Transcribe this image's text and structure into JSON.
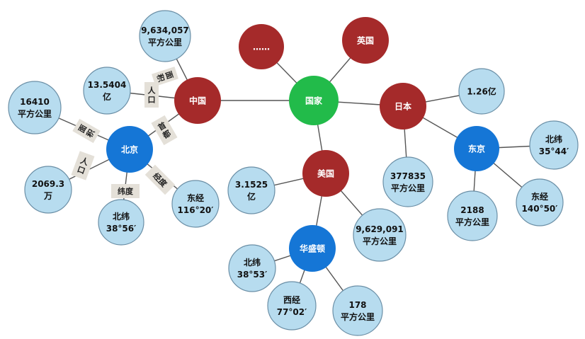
{
  "center": "国家",
  "countries": {
    "china": "中国",
    "japan": "日本",
    "usa": "美国",
    "uk": "英国",
    "more": "……"
  },
  "capitals": {
    "beijing": "北京",
    "tokyo": "东京",
    "washington": "华盛顿"
  },
  "china_facts": {
    "area": [
      "9,634,057",
      "平方公里"
    ],
    "population": [
      "13.5404",
      "亿"
    ]
  },
  "beijing_facts": {
    "area": [
      "16410",
      "平方公里"
    ],
    "population": [
      "2069.3",
      "万"
    ],
    "latitude": [
      "北纬",
      "38°56′"
    ],
    "longitude": [
      "东经",
      "116°20′"
    ]
  },
  "japan_facts": {
    "population": [
      "1.26亿"
    ],
    "area": [
      "377835",
      "平方公里"
    ]
  },
  "tokyo_facts": {
    "latitude": [
      "北纬",
      "35°44′"
    ],
    "longitude": [
      "东经",
      "140°50′"
    ],
    "area": [
      "2188",
      "平方公里"
    ]
  },
  "usa_facts": {
    "population": [
      "3.1525",
      "亿"
    ],
    "area": [
      "9,629,091",
      "平方公里"
    ]
  },
  "washington_facts": {
    "latitude": [
      "北纬",
      "38°53′"
    ],
    "longitude": [
      "西经",
      "77°02′"
    ],
    "area": [
      "178",
      "平方公里"
    ]
  },
  "edge_labels": {
    "area": "面积",
    "population": "人口",
    "capital": "首都",
    "latitude": "纬度",
    "longitude": "经度"
  },
  "colors": {
    "green": "#22bb4a",
    "red": "#a52a2a",
    "blue": "#1576d6",
    "light": "#b7dcef",
    "label_bg": "#e4e0d8"
  }
}
